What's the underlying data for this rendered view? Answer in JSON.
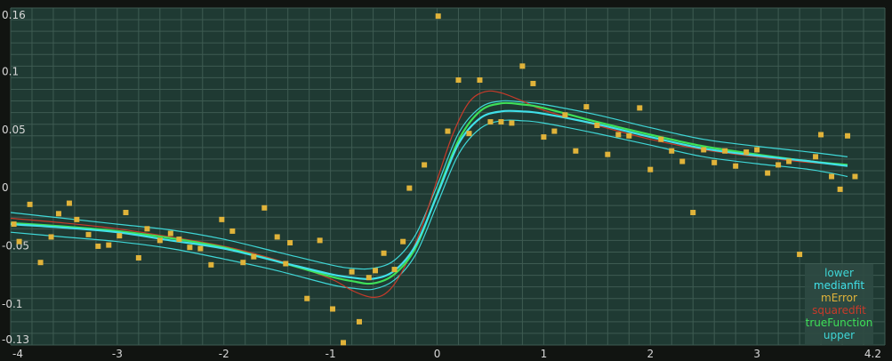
{
  "chart_data": {
    "type": "scatter",
    "title": "",
    "xlabel": "",
    "ylabel": "",
    "xlim": [
      -4,
      4.2
    ],
    "ylim": [
      -0.13,
      0.16
    ],
    "x_ticks": [
      -4,
      -3,
      -2,
      -1,
      0,
      1,
      2,
      3,
      4.2
    ],
    "x_tick_labels": [
      "-4",
      "-3",
      "-2",
      "-1",
      "0",
      "1",
      "2",
      "3",
      "4.2"
    ],
    "y_ticks": [
      -0.13,
      -0.1,
      -0.05,
      0,
      0.05,
      0.1,
      0.16
    ],
    "y_tick_labels": [
      "-0.13",
      "-0.1",
      "-0.05",
      "0",
      "0.05",
      "0.1",
      "0.16"
    ],
    "grid": true,
    "legend_position": "bottom-right",
    "colors": {
      "background": "#1f3a33",
      "grid": "#3e5b52",
      "frame": "#111411",
      "points": "#e0b33a"
    },
    "series": [
      {
        "name": "lower",
        "color": "#3fd6d6",
        "x": [
          -4,
          -3.5,
          -3,
          -2.5,
          -2,
          -1.5,
          -1,
          -0.8,
          -0.6,
          -0.4,
          -0.2,
          0,
          0.2,
          0.4,
          0.6,
          0.8,
          1,
          1.5,
          2,
          2.5,
          3,
          3.5,
          3.85
        ],
        "values": [
          -0.033,
          -0.037,
          -0.041,
          -0.047,
          -0.056,
          -0.066,
          -0.078,
          -0.081,
          -0.082,
          -0.074,
          -0.052,
          -0.009,
          0.034,
          0.056,
          0.063,
          0.063,
          0.061,
          0.052,
          0.042,
          0.032,
          0.026,
          0.021,
          0.015
        ]
      },
      {
        "name": "medianfit",
        "color": "#40e0e8",
        "x": [
          -4,
          -3.5,
          -3,
          -2.5,
          -2,
          -1.5,
          -1,
          -0.8,
          -0.6,
          -0.4,
          -0.2,
          0,
          0.2,
          0.4,
          0.6,
          0.8,
          1,
          1.5,
          2,
          2.5,
          3,
          3.5,
          3.85
        ],
        "values": [
          -0.026,
          -0.029,
          -0.033,
          -0.04,
          -0.047,
          -0.058,
          -0.069,
          -0.072,
          -0.073,
          -0.066,
          -0.044,
          -0.001,
          0.043,
          0.065,
          0.071,
          0.071,
          0.069,
          0.06,
          0.049,
          0.039,
          0.033,
          0.028,
          0.024
        ]
      },
      {
        "name": "mError",
        "color": "#e0b33a",
        "x": [
          -3.97,
          -3.92,
          -3.82,
          -3.72,
          -3.62,
          -3.55,
          -3.45,
          -3.38,
          -3.27,
          -3.18,
          -3.08,
          -2.98,
          -2.92,
          -2.8,
          -2.72,
          -2.6,
          -2.5,
          -2.42,
          -2.32,
          -2.22,
          -2.12,
          -2.02,
          -1.92,
          -1.82,
          -1.72,
          -1.62,
          -1.5,
          -1.42,
          -1.38,
          -1.22,
          -1.1,
          -0.98,
          -0.88,
          -0.8,
          -0.73,
          -0.64,
          -0.58,
          -0.5,
          -0.4,
          -0.32,
          -0.26,
          -0.12,
          0.01,
          0.1,
          0.2,
          0.3,
          0.4,
          0.5,
          0.6,
          0.7,
          0.8,
          0.9,
          1.0,
          1.1,
          1.2,
          1.3,
          1.4,
          1.5,
          1.6,
          1.7,
          1.8,
          1.9,
          2.0,
          2.1,
          2.2,
          2.3,
          2.4,
          2.5,
          2.6,
          2.7,
          2.8,
          2.9,
          3.0,
          3.1,
          3.2,
          3.3,
          3.4,
          3.55,
          3.6,
          3.7,
          3.78,
          3.85,
          3.92
        ],
        "values": [
          -0.026,
          -0.041,
          -0.009,
          -0.059,
          -0.037,
          -0.017,
          -0.008,
          -0.022,
          -0.035,
          -0.045,
          -0.044,
          -0.036,
          -0.016,
          -0.055,
          -0.03,
          -0.04,
          -0.034,
          -0.039,
          -0.046,
          -0.047,
          -0.061,
          -0.022,
          -0.032,
          -0.059,
          -0.054,
          -0.012,
          -0.037,
          -0.06,
          -0.042,
          -0.09,
          -0.04,
          -0.099,
          -0.128,
          -0.067,
          -0.11,
          -0.072,
          -0.066,
          -0.051,
          -0.065,
          -0.041,
          0.005,
          0.025,
          0.153,
          0.054,
          0.098,
          0.052,
          0.098,
          0.062,
          0.062,
          0.061,
          0.11,
          0.095,
          0.049,
          0.054,
          0.068,
          0.037,
          0.075,
          0.059,
          0.034,
          0.051,
          0.05,
          0.074,
          0.021,
          0.047,
          0.037,
          0.028,
          -0.016,
          0.038,
          0.027,
          0.037,
          0.024,
          0.036,
          0.038,
          0.018,
          0.025,
          0.028,
          -0.052,
          0.032,
          0.051,
          0.015,
          0.004,
          0.05,
          0.015
        ]
      },
      {
        "name": "squaredfit",
        "color": "#c83a2a",
        "x": [
          -4,
          -3.5,
          -3,
          -2.5,
          -2,
          -1.5,
          -1,
          -0.8,
          -0.6,
          -0.45,
          -0.3,
          -0.15,
          0,
          0.15,
          0.3,
          0.45,
          0.6,
          0.8,
          1,
          1.5,
          2,
          2.5,
          3,
          3.5,
          3.85
        ],
        "values": [
          -0.021,
          -0.025,
          -0.03,
          -0.037,
          -0.045,
          -0.057,
          -0.073,
          -0.083,
          -0.089,
          -0.083,
          -0.062,
          -0.03,
          0.012,
          0.052,
          0.079,
          0.088,
          0.087,
          0.08,
          0.072,
          0.059,
          0.047,
          0.038,
          0.032,
          0.027,
          0.025
        ]
      },
      {
        "name": "trueFunction",
        "color": "#3ee058",
        "x": [
          -4,
          -3.5,
          -3,
          -2.5,
          -2,
          -1.5,
          -1,
          -0.8,
          -0.6,
          -0.4,
          -0.2,
          0,
          0.2,
          0.4,
          0.6,
          0.8,
          1,
          1.5,
          2,
          2.5,
          3,
          3.5,
          3.85
        ],
        "values": [
          -0.025,
          -0.028,
          -0.032,
          -0.038,
          -0.046,
          -0.058,
          -0.071,
          -0.075,
          -0.077,
          -0.069,
          -0.046,
          0,
          0.046,
          0.071,
          0.078,
          0.077,
          0.074,
          0.062,
          0.051,
          0.041,
          0.034,
          0.028,
          0.025
        ]
      },
      {
        "name": "upper",
        "color": "#3fd6d6",
        "x": [
          -4,
          -3.5,
          -3,
          -2.5,
          -2,
          -1.5,
          -1,
          -0.8,
          -0.6,
          -0.4,
          -0.2,
          0,
          0.2,
          0.4,
          0.6,
          0.8,
          1,
          1.5,
          2,
          2.5,
          3,
          3.5,
          3.85
        ],
        "values": [
          -0.016,
          -0.021,
          -0.026,
          -0.031,
          -0.039,
          -0.05,
          -0.061,
          -0.064,
          -0.064,
          -0.057,
          -0.035,
          0.007,
          0.052,
          0.074,
          0.08,
          0.079,
          0.077,
          0.068,
          0.057,
          0.047,
          0.041,
          0.036,
          0.032
        ]
      }
    ]
  }
}
